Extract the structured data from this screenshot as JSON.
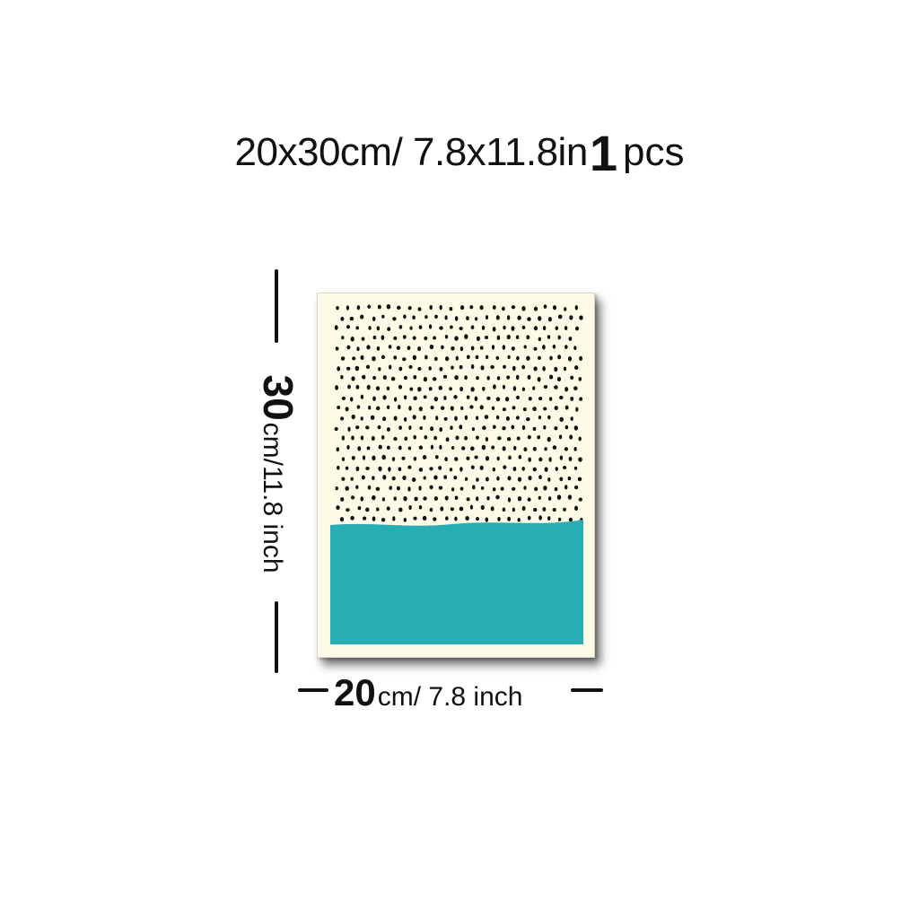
{
  "title": {
    "size_text": "20x30cm/ 7.8x11.8in",
    "quantity": "1",
    "quantity_unit": "pcs"
  },
  "dimensions": {
    "height_value": "30",
    "height_unit": "cm/11.8 inch",
    "width_value": "20",
    "width_unit": "cm/ 7.8 inch"
  },
  "poster": {
    "background_color": "#fdfbe8",
    "dot_color": "#111111",
    "band_color": "#27aeb5"
  }
}
